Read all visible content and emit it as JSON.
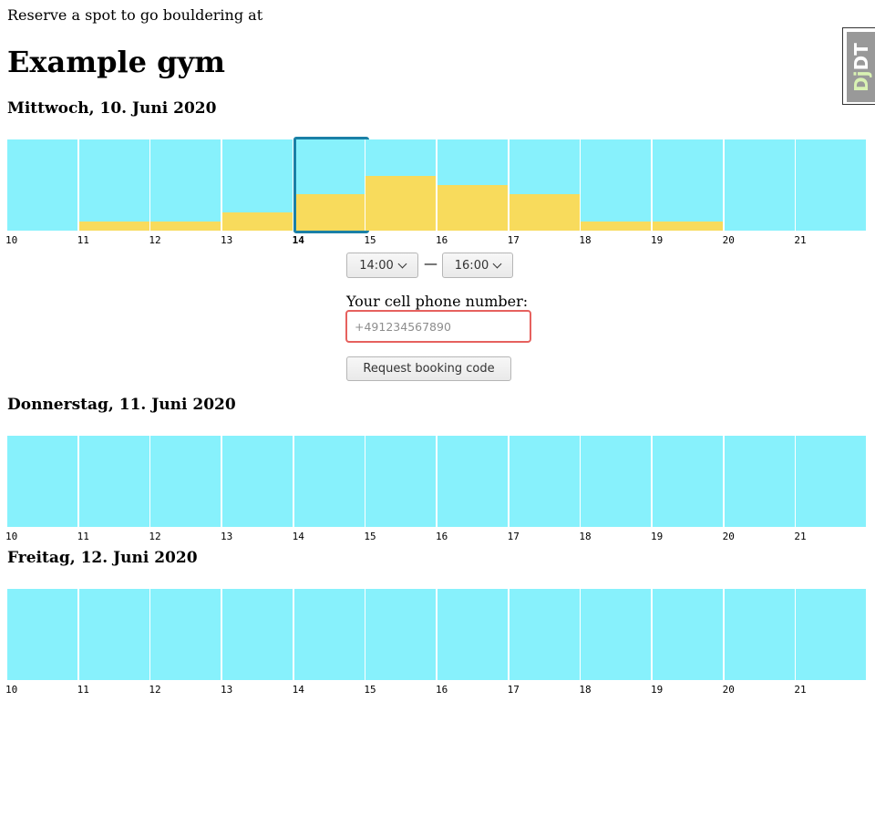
{
  "intro_text": "Reserve a spot to go bouldering at",
  "gym_name": "Example gym",
  "hours": [
    "10",
    "11",
    "12",
    "13",
    "14",
    "15",
    "16",
    "17",
    "18",
    "19",
    "20",
    "21"
  ],
  "days": [
    {
      "title": "Mittwoch, 10. Juni 2020",
      "occupancy": [
        0,
        0.1,
        0.1,
        0.2,
        0.4,
        0.6,
        0.5,
        0.4,
        0.1,
        0.1,
        0,
        0
      ],
      "selected_hour": "14"
    },
    {
      "title": "Donnerstag, 11. Juni 2020",
      "occupancy": [
        0,
        0,
        0,
        0,
        0,
        0,
        0,
        0,
        0,
        0,
        0,
        0
      ],
      "selected_hour": null
    },
    {
      "title": "Freitag, 12. Juni 2020",
      "occupancy": [
        0,
        0,
        0,
        0,
        0,
        0,
        0,
        0,
        0,
        0,
        0,
        0
      ],
      "selected_hour": null
    }
  ],
  "booking": {
    "start_time": "14:00",
    "end_time": "16:00",
    "separator": "—",
    "phone_label": "Your cell phone number:",
    "phone_placeholder": "+491234567890",
    "phone_value": "",
    "request_button": "Request booking code"
  },
  "debug_toolbar": {
    "prefix": "Dj",
    "suffix": "DT"
  },
  "colors": {
    "free": "#87F1FC",
    "occupied": "#F8DB5C",
    "selection": "#1A80A6",
    "input_error_border": "#e6615e"
  }
}
